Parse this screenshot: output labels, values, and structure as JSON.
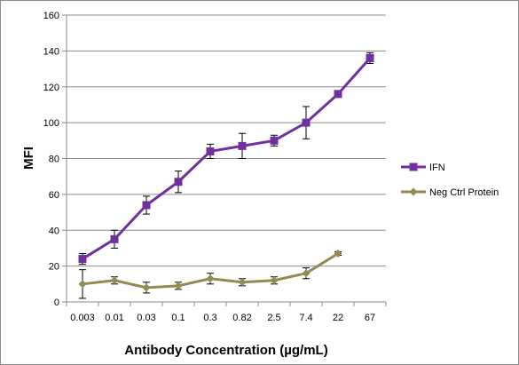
{
  "chart_data": {
    "type": "line",
    "xlabel": "Antibody Concentration (µg/mL)",
    "ylabel": "MFI",
    "categories": [
      "0.003",
      "0.01",
      "0.03",
      "0.1",
      "0.3",
      "0.82",
      "2.5",
      "7.4",
      "22",
      "67"
    ],
    "ylim": [
      0,
      160
    ],
    "yticks": [
      0,
      20,
      40,
      60,
      80,
      100,
      120,
      140,
      160
    ],
    "grid": true,
    "legend_position": "right",
    "series": [
      {
        "name": "IFN",
        "color": "#7030a0",
        "marker": "square",
        "values": [
          24,
          35,
          54,
          67,
          84,
          87,
          90,
          100,
          116,
          136
        ],
        "error": [
          3,
          5,
          5,
          6,
          4,
          7,
          3,
          9,
          0,
          3
        ]
      },
      {
        "name": "Neg Ctrl Protein",
        "color": "#948a54",
        "marker": "diamond",
        "values": [
          10,
          12,
          8,
          9,
          13,
          11,
          12,
          16,
          27,
          null
        ],
        "error": [
          8,
          2,
          3,
          2,
          3,
          2,
          2,
          3,
          1,
          null
        ]
      }
    ]
  }
}
